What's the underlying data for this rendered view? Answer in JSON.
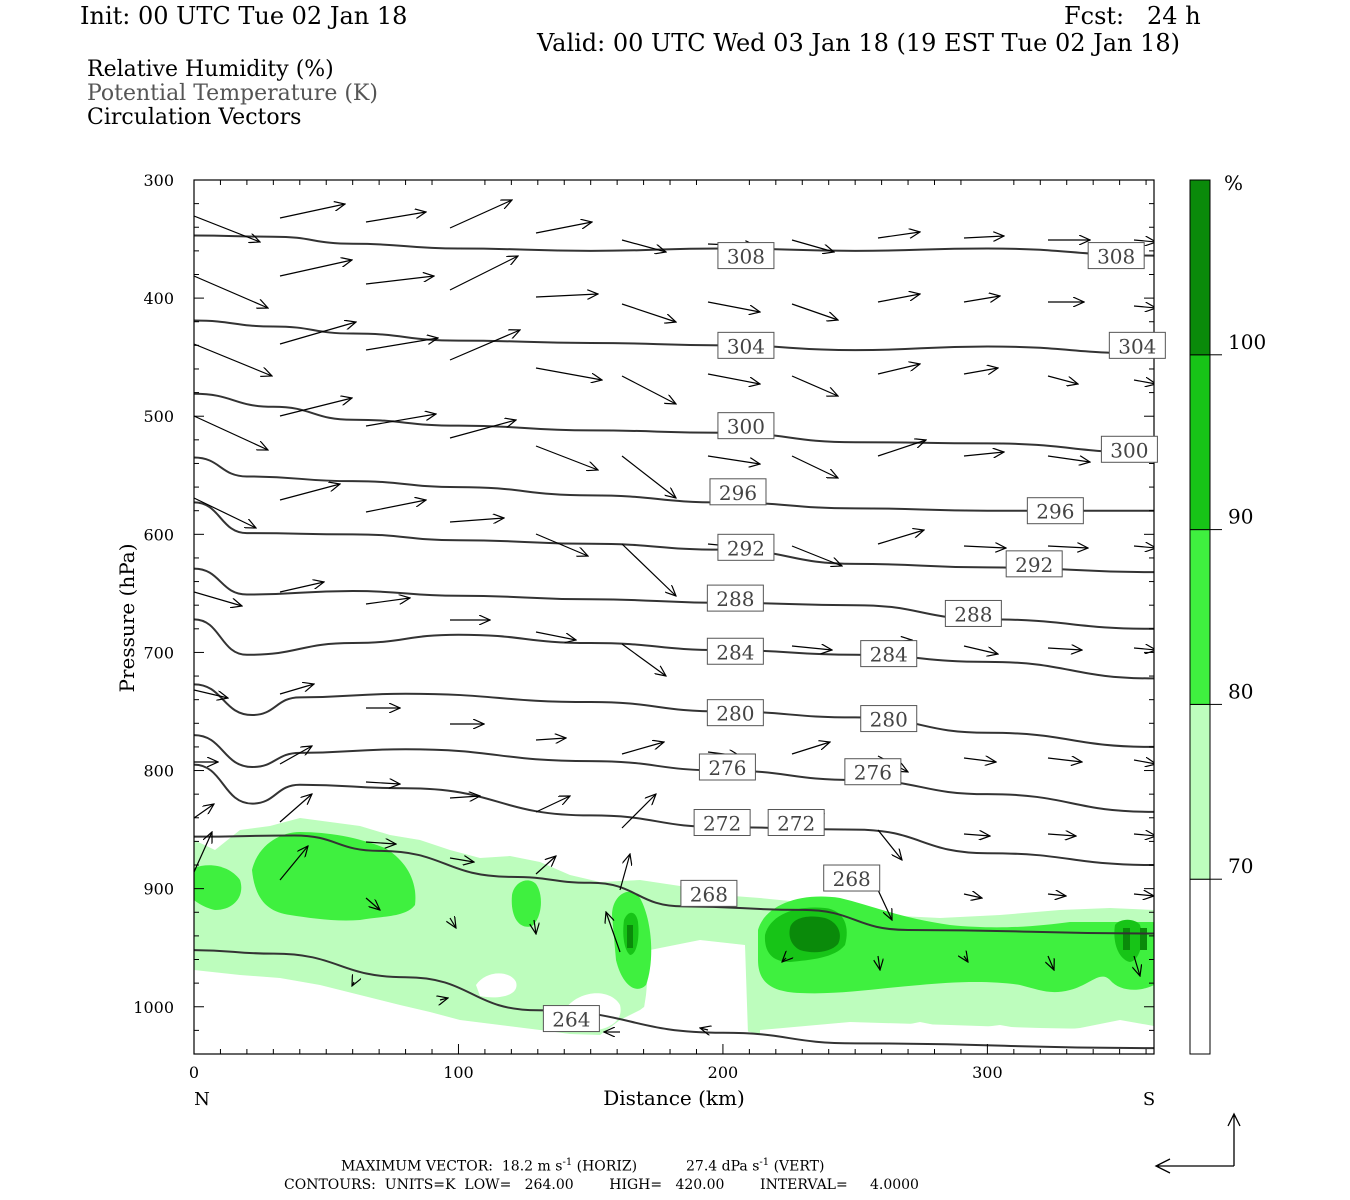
{
  "header": {
    "init": "Init: 00 UTC Tue 02 Jan 18",
    "fcst": "Fcst:   24 h",
    "valid": "Valid: 00 UTC Wed 03 Jan 18 (19 EST Tue 02 Jan 18)"
  },
  "legend": {
    "line1": "Relative Humidity (%)",
    "line2": "Potential Temperature (K)",
    "line3": "Circulation Vectors"
  },
  "colors": {
    "rh70": "#bdfdbd",
    "rh80": "#3ff03f",
    "rh90": "#17c417",
    "rh100": "#0a8a0a",
    "theta": "#333333",
    "vector": "#000000"
  },
  "chart_data": {
    "type": "cross-section",
    "x_axis": {
      "label": "Distance (km)",
      "range": [
        0,
        363
      ],
      "ticks": [
        0,
        100,
        200,
        300
      ],
      "left_end_label": "N",
      "right_end_label": "S"
    },
    "y_axis": {
      "label": "Pressure (hPa)",
      "range": [
        1040,
        300
      ],
      "ticks": [
        300,
        400,
        500,
        600,
        700,
        800,
        900,
        1000
      ],
      "scale": "linear"
    },
    "colorbar": {
      "unit_label": "%",
      "levels": [
        70,
        80,
        90,
        100
      ],
      "colors": [
        "#bdfdbd",
        "#3ff03f",
        "#17c417",
        "#0a8a0a"
      ]
    },
    "theta_contours": [
      {
        "value": 308,
        "points": [
          [
            0,
            347
          ],
          [
            30,
            348
          ],
          [
            60,
            354
          ],
          [
            100,
            358
          ],
          [
            150,
            360
          ],
          [
            200,
            358
          ],
          [
            250,
            360
          ],
          [
            300,
            358
          ],
          [
            363,
            364
          ]
        ],
        "labels": [
          [
            200,
            364
          ],
          [
            340,
            364
          ]
        ]
      },
      {
        "value": 304,
        "points": [
          [
            0,
            419
          ],
          [
            30,
            424
          ],
          [
            60,
            430
          ],
          [
            100,
            436
          ],
          [
            150,
            438
          ],
          [
            200,
            440
          ],
          [
            250,
            444
          ],
          [
            300,
            441
          ],
          [
            363,
            447
          ]
        ],
        "labels": [
          [
            200,
            440
          ],
          [
            348,
            440
          ]
        ]
      },
      {
        "value": 300,
        "points": [
          [
            0,
            481
          ],
          [
            30,
            492
          ],
          [
            60,
            503
          ],
          [
            100,
            508
          ],
          [
            150,
            512
          ],
          [
            200,
            514
          ],
          [
            250,
            522
          ],
          [
            300,
            523
          ],
          [
            363,
            531
          ]
        ],
        "labels": [
          [
            200,
            508
          ],
          [
            345,
            528
          ]
        ]
      },
      {
        "value": 296,
        "points": [
          [
            0,
            535
          ],
          [
            20,
            551
          ],
          [
            60,
            555
          ],
          [
            100,
            560
          ],
          [
            150,
            567
          ],
          [
            200,
            573
          ],
          [
            250,
            578
          ],
          [
            300,
            580
          ],
          [
            363,
            580
          ]
        ],
        "labels": [
          [
            197,
            564
          ],
          [
            317,
            580
          ]
        ]
      },
      {
        "value": 292,
        "points": [
          [
            0,
            573
          ],
          [
            20,
            599
          ],
          [
            60,
            600
          ],
          [
            100,
            605
          ],
          [
            150,
            608
          ],
          [
            200,
            613
          ],
          [
            250,
            625
          ],
          [
            300,
            628
          ],
          [
            363,
            632
          ]
        ],
        "labels": [
          [
            200,
            611
          ],
          [
            309,
            625
          ]
        ]
      },
      {
        "value": 288,
        "points": [
          [
            0,
            629
          ],
          [
            20,
            651
          ],
          [
            60,
            648
          ],
          [
            100,
            652
          ],
          [
            150,
            655
          ],
          [
            200,
            658
          ],
          [
            250,
            660
          ],
          [
            300,
            672
          ],
          [
            363,
            680
          ]
        ],
        "labels": [
          [
            196,
            654
          ],
          [
            286,
            667
          ]
        ]
      },
      {
        "value": 284,
        "points": [
          [
            0,
            672
          ],
          [
            20,
            702
          ],
          [
            60,
            692
          ],
          [
            100,
            685
          ],
          [
            150,
            692
          ],
          [
            200,
            698
          ],
          [
            250,
            702
          ],
          [
            300,
            708
          ],
          [
            363,
            722
          ]
        ],
        "labels": [
          [
            196,
            699
          ],
          [
            254,
            701
          ]
        ]
      },
      {
        "value": 280,
        "points": [
          [
            0,
            727
          ],
          [
            22,
            753
          ],
          [
            40,
            738
          ],
          [
            80,
            735
          ],
          [
            150,
            742
          ],
          [
            200,
            750
          ],
          [
            250,
            755
          ],
          [
            300,
            768
          ],
          [
            363,
            780
          ]
        ],
        "labels": [
          [
            196,
            751
          ],
          [
            254,
            756
          ]
        ]
      },
      {
        "value": 276,
        "points": [
          [
            0,
            770
          ],
          [
            22,
            797
          ],
          [
            40,
            785
          ],
          [
            80,
            782
          ],
          [
            150,
            792
          ],
          [
            200,
            800
          ],
          [
            250,
            808
          ],
          [
            300,
            820
          ],
          [
            363,
            835
          ]
        ],
        "labels": [
          [
            193,
            797
          ],
          [
            248,
            801
          ]
        ]
      },
      {
        "value": 272,
        "points": [
          [
            0,
            795
          ],
          [
            22,
            828
          ],
          [
            40,
            812
          ],
          [
            80,
            815
          ],
          [
            150,
            838
          ],
          [
            200,
            848
          ],
          [
            250,
            850
          ],
          [
            300,
            870
          ],
          [
            363,
            880
          ]
        ],
        "labels": [
          [
            191,
            844
          ],
          [
            219,
            844
          ]
        ]
      },
      {
        "value": 268,
        "points": [
          [
            0,
            856
          ],
          [
            38,
            855
          ],
          [
            70,
            868
          ],
          [
            120,
            890
          ],
          [
            150,
            895
          ],
          [
            185,
            915
          ],
          [
            230,
            918
          ],
          [
            270,
            935
          ],
          [
            363,
            938
          ]
        ],
        "labels": [
          [
            186,
            904
          ],
          [
            240,
            891
          ]
        ]
      },
      {
        "value": 264,
        "points": [
          [
            0,
            952
          ],
          [
            30,
            955
          ],
          [
            80,
            975
          ],
          [
            130,
            1003
          ],
          [
            200,
            1022
          ],
          [
            250,
            1031
          ],
          [
            363,
            1035
          ]
        ],
        "labels": [
          [
            134,
            1010
          ]
        ]
      }
    ]
  },
  "footer": {
    "max_vector_label": "MAXIMUM VECTOR:",
    "horiz_value": "18.2 m s",
    "horiz_unit_sup": "-1",
    "horiz_tag": "(HORIZ)",
    "vert_value": "27.4 dPa s",
    "vert_unit_sup": "-1",
    "vert_tag": "(VERT)",
    "contours_line": "CONTOURS:  UNITS=K  LOW=   264.00        HIGH=   420.00        INTERVAL=     4.0000"
  }
}
